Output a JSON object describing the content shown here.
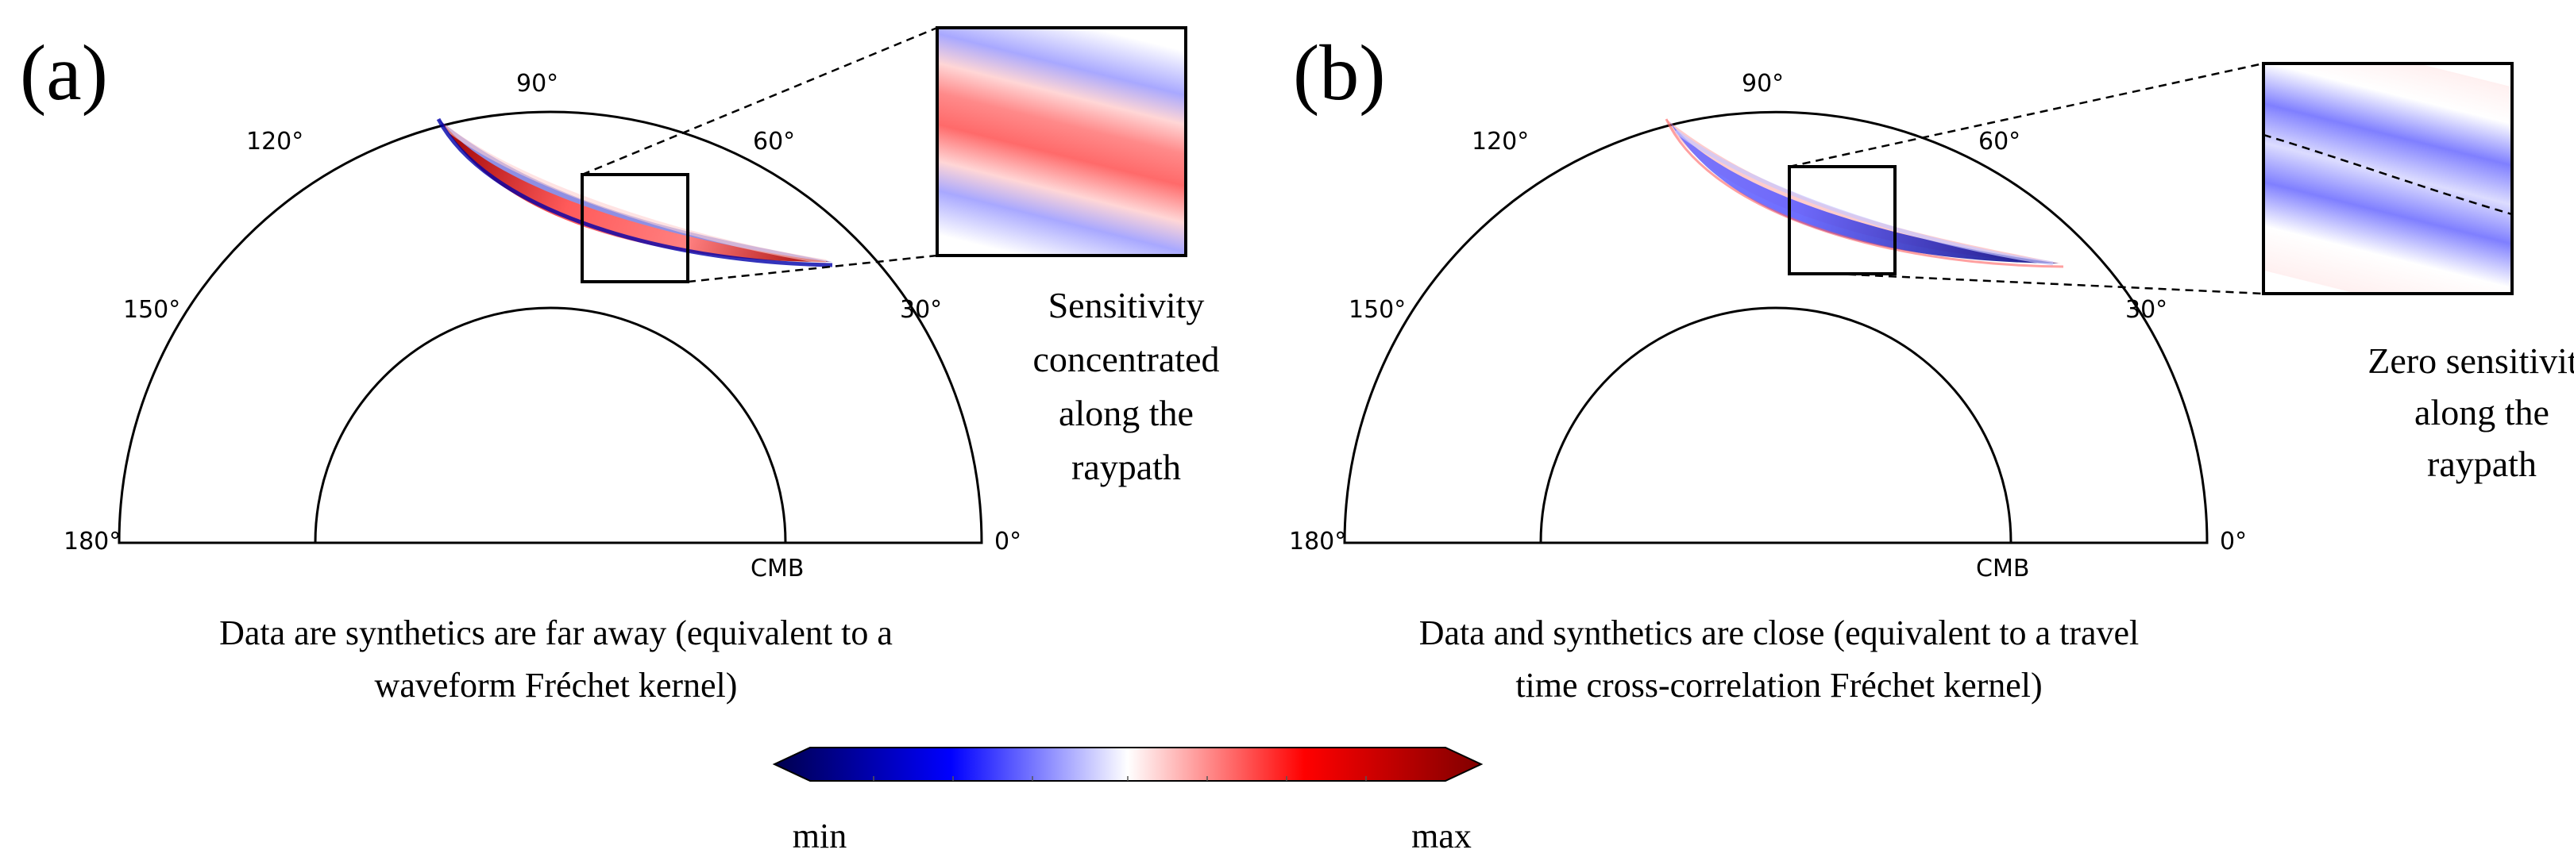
{
  "panels": {
    "a": {
      "label": "(a)",
      "ticks": {
        "t0": "0°",
        "t30": "30°",
        "t60": "60°",
        "t90": "90°",
        "t120": "120°",
        "t150": "150°",
        "t180": "180°",
        "cmb": "CMB"
      },
      "note": [
        "Sensitivity",
        "concentrated",
        "along the",
        "raypath"
      ],
      "caption": [
        "Data are synthetics are far away (equivalent to a",
        "waveform Fréchet kernel)"
      ]
    },
    "b": {
      "label": "(b)",
      "ticks": {
        "t0": "0°",
        "t30": "30°",
        "t60": "60°",
        "t90": "90°",
        "t120": "120°",
        "t150": "150°",
        "t180": "180°",
        "cmb": "CMB"
      },
      "note": [
        "Zero sensitivity",
        "along the",
        "raypath"
      ],
      "caption": [
        "Data and synthetics are close (equivalent to a travel",
        "time cross-correlation Fréchet kernel)"
      ]
    }
  },
  "colorbar": {
    "min_label": "min",
    "max_label": "max"
  },
  "colors": {
    "max": "#8b0000",
    "red": "#ff0000",
    "white": "#ffffff",
    "blue": "#0000ff",
    "min": "#00004d"
  }
}
